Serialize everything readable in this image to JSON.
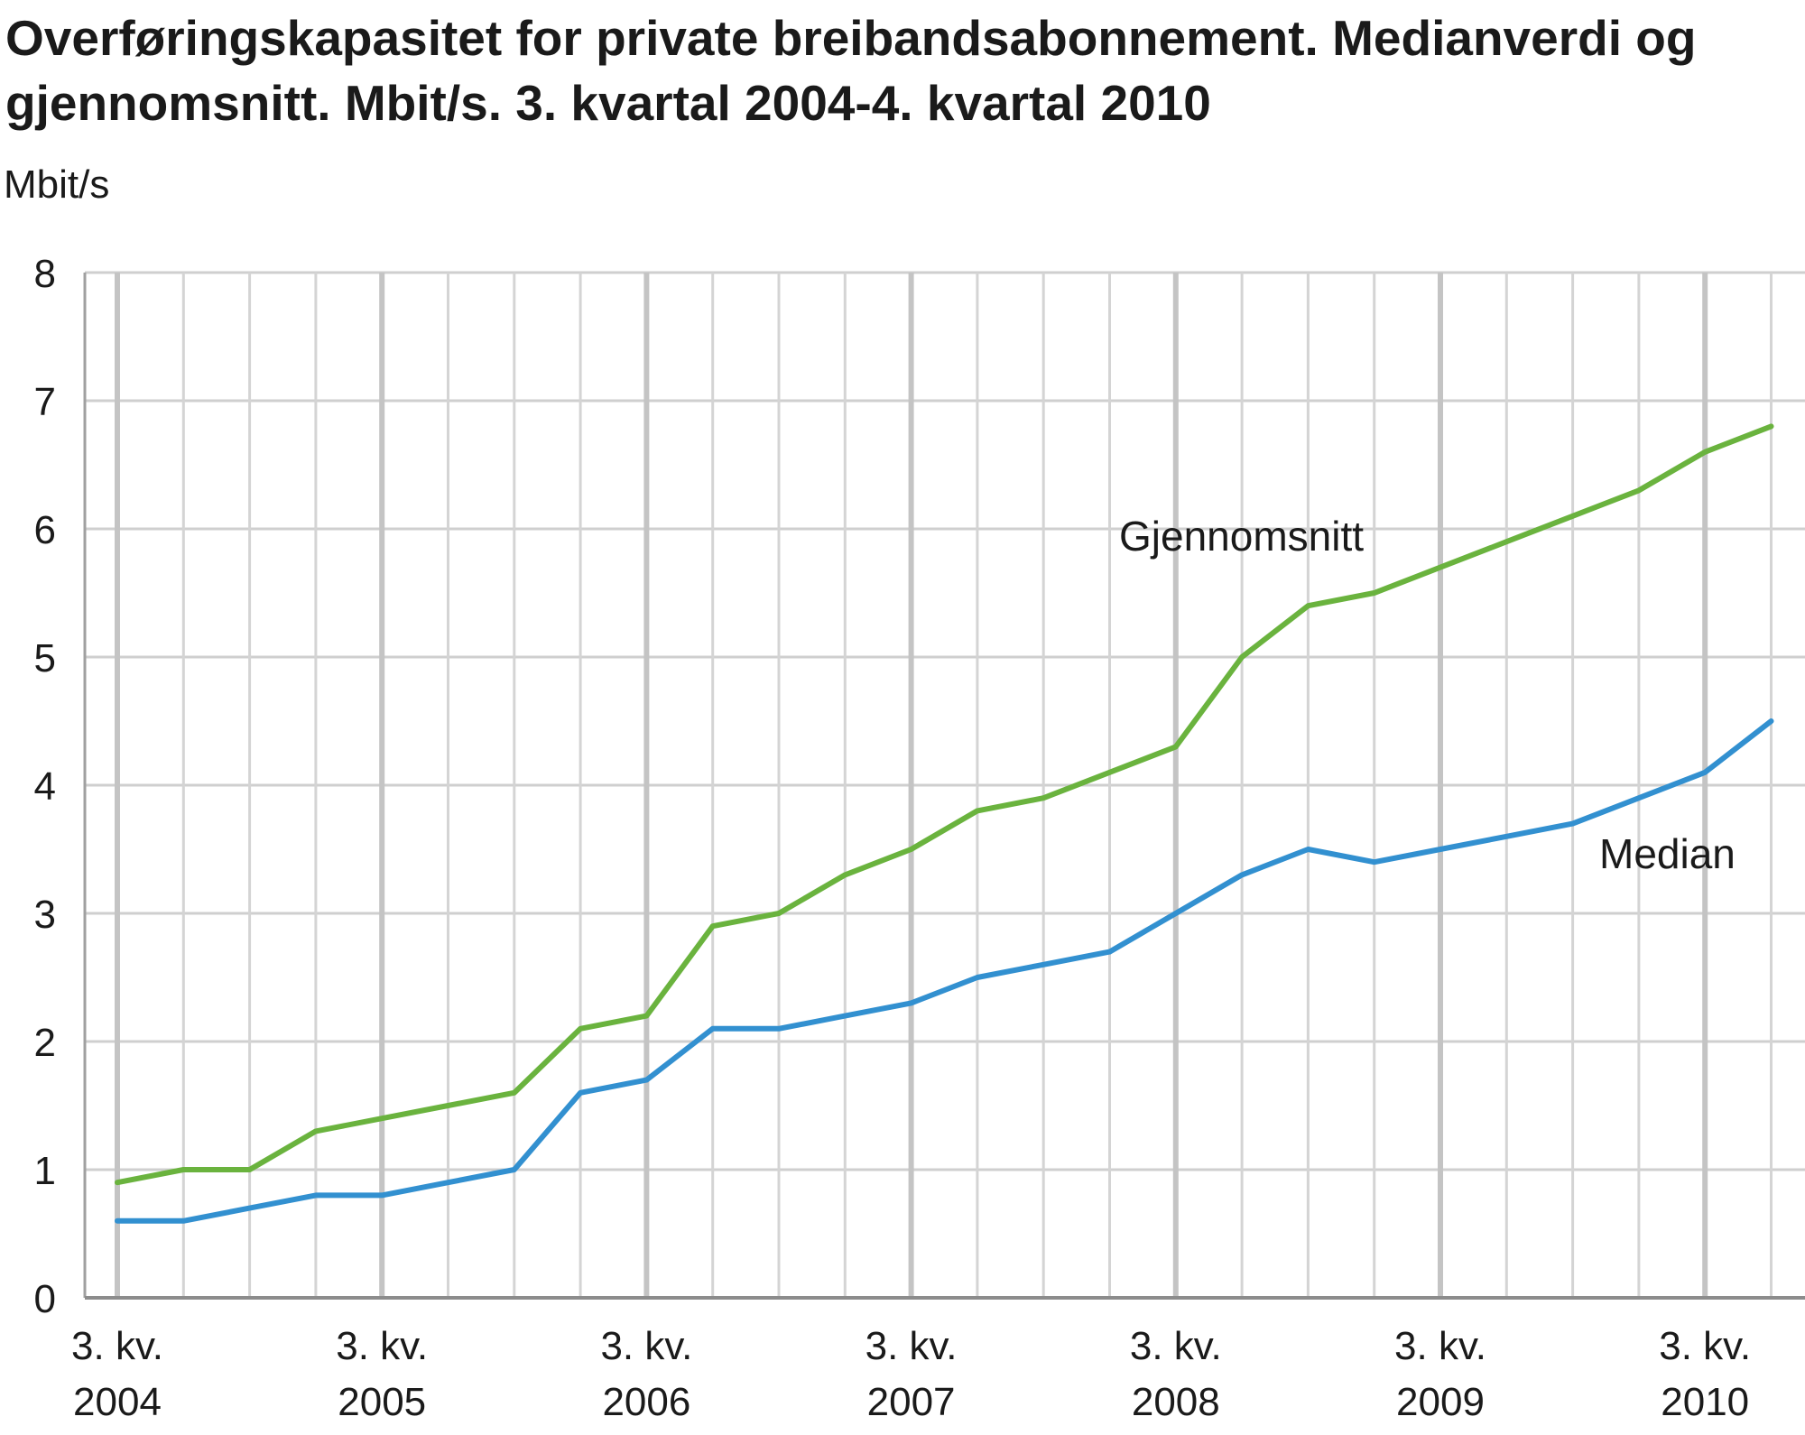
{
  "chart_data": {
    "type": "line",
    "title": "Overføringskapasitet for private breibandsabonnement. Medianverdi og gjennomsnitt. Mbit/s. 3. kvartal 2004-4. kvartal 2010",
    "ylabel": "Mbit/s",
    "xlabel": "",
    "ylim": [
      0,
      8
    ],
    "yticks": [
      "0",
      "1",
      "2",
      "3",
      "4",
      "5",
      "6",
      "7",
      "8"
    ],
    "grid": true,
    "xtick_labels": [
      {
        "line1": "3. kv.",
        "line2": "2004",
        "index": 0
      },
      {
        "line1": "3. kv.",
        "line2": "2005",
        "index": 4
      },
      {
        "line1": "3. kv.",
        "line2": "2006",
        "index": 8
      },
      {
        "line1": "3. kv.",
        "line2": "2007",
        "index": 12
      },
      {
        "line1": "3. kv.",
        "line2": "2008",
        "index": 16
      },
      {
        "line1": "3. kv.",
        "line2": "2009",
        "index": 20
      },
      {
        "line1": "3. kv.",
        "line2": "2010",
        "index": 24
      }
    ],
    "x": [
      "2004K3",
      "2004K4",
      "2005K1",
      "2005K2",
      "2005K3",
      "2005K4",
      "2006K1",
      "2006K2",
      "2006K3",
      "2006K4",
      "2007K1",
      "2007K2",
      "2007K3",
      "2007K4",
      "2008K1",
      "2008K2",
      "2008K3",
      "2008K4",
      "2009K1",
      "2009K2",
      "2009K3",
      "2009K4",
      "2010K1",
      "2010K2",
      "2010K3",
      "2010K4"
    ],
    "series": [
      {
        "name": "Gjennomsnitt",
        "color": "#6ab33e",
        "values": [
          0.9,
          1.0,
          1.0,
          1.3,
          1.4,
          1.5,
          1.6,
          2.1,
          2.2,
          2.9,
          3.0,
          3.3,
          3.5,
          3.8,
          3.9,
          4.1,
          4.3,
          5.0,
          5.4,
          5.5,
          5.7,
          5.9,
          6.1,
          6.3,
          6.6,
          6.8
        ]
      },
      {
        "name": "Median",
        "color": "#3290d0",
        "values": [
          0.6,
          0.6,
          0.7,
          0.8,
          0.8,
          0.9,
          1.0,
          1.6,
          1.7,
          2.1,
          2.1,
          2.2,
          2.3,
          2.5,
          2.6,
          2.7,
          3.0,
          3.3,
          3.5,
          3.4,
          3.5,
          3.6,
          3.7,
          3.9,
          4.1,
          4.5
        ]
      }
    ]
  }
}
